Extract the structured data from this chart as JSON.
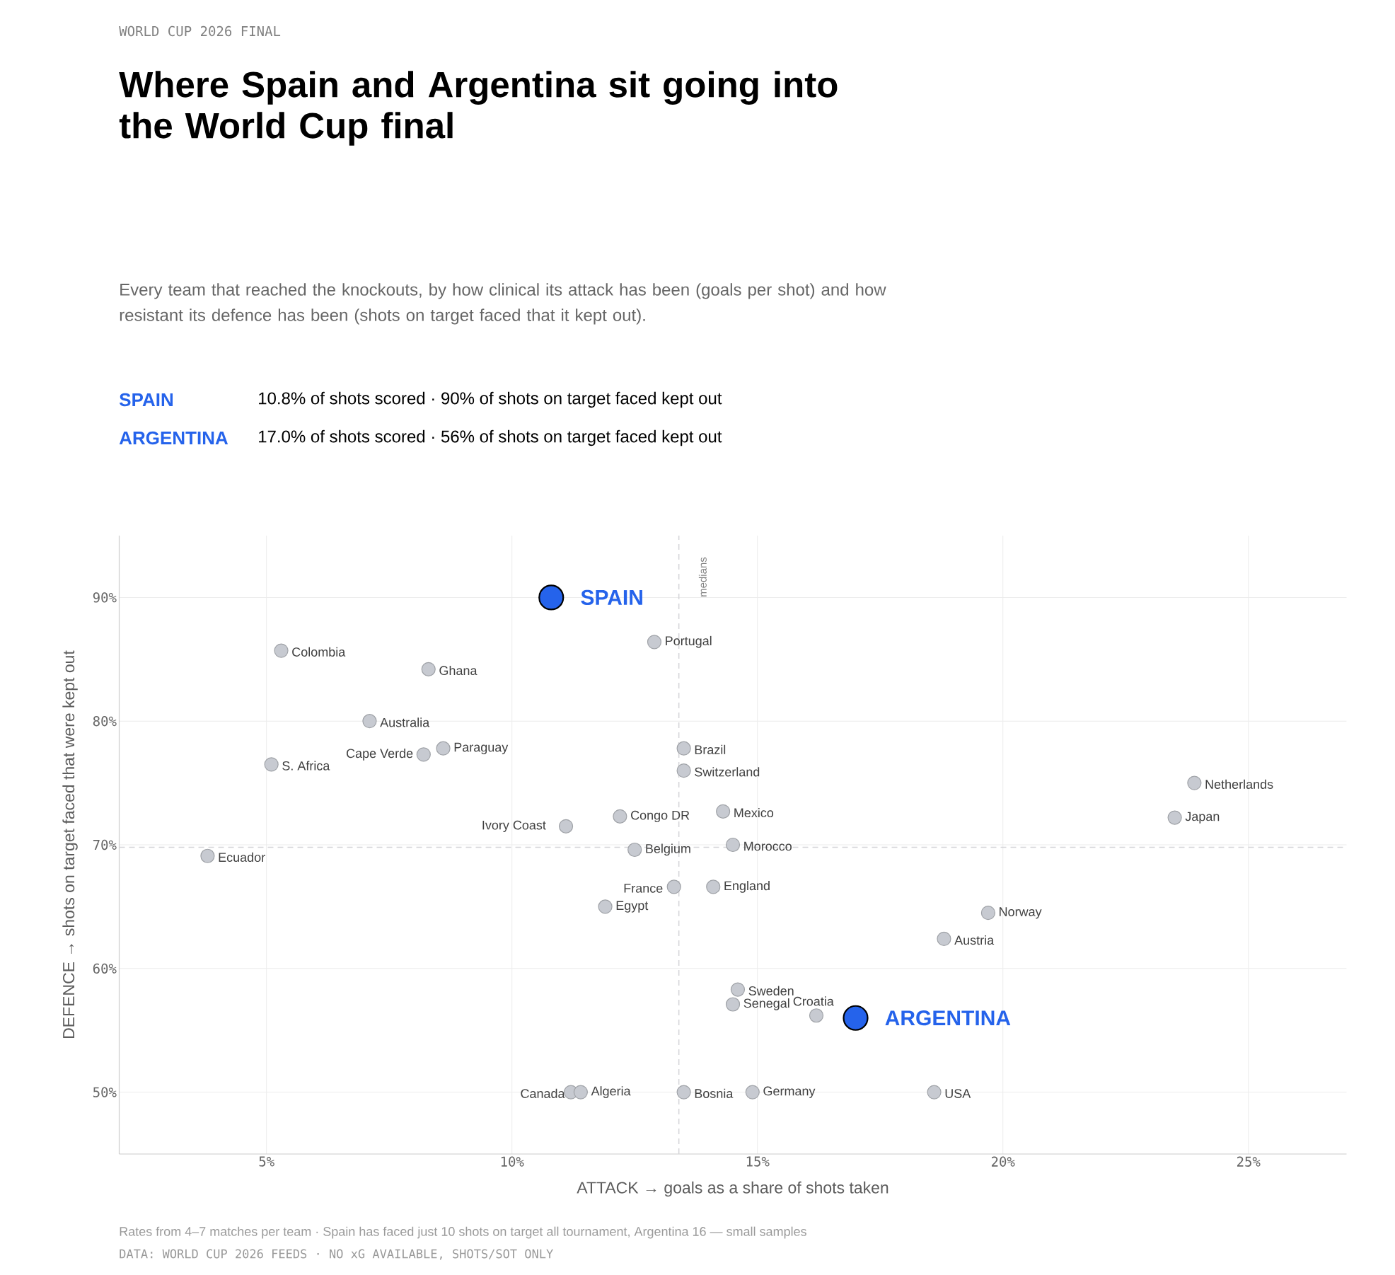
{
  "chart_data": {
    "type": "scatter",
    "title": "Where Spain and Argentina sit going into the World Cup final",
    "subtitle": "Every team that reached the knockouts, by how clinical its attack has been (goals per shot) and how resistant its defence has been (shots on target faced that it kept out).",
    "xlabel": "ATTACK → goals as a share of shots taken",
    "ylabel": "DEFENCE → shots on target faced that were kept out",
    "xlim": [
      2,
      27
    ],
    "ylim": [
      45,
      95
    ],
    "xticks": [
      {
        "value": 5,
        "label": "5%"
      },
      {
        "value": 10,
        "label": "10%"
      },
      {
        "value": 15,
        "label": "15%"
      },
      {
        "value": 20,
        "label": "20%"
      },
      {
        "value": 25,
        "label": "25%"
      }
    ],
    "yticks": [
      {
        "value": 50,
        "label": "50%"
      },
      {
        "value": 60,
        "label": "60%"
      },
      {
        "value": 70,
        "label": "70%"
      },
      {
        "value": 80,
        "label": "80%"
      },
      {
        "value": 90,
        "label": "90%"
      }
    ],
    "grid": true,
    "marker": "circle",
    "ref_lines": [
      {
        "axis": "x",
        "value": 13.4,
        "label": "medians",
        "color": "#d4d4d8",
        "line_style": "dashed"
      },
      {
        "axis": "y",
        "value": 69.8,
        "label": null,
        "color": "#d4d4d8",
        "line_style": "dashed"
      }
    ],
    "series": [
      {
        "color": "#c7cad1",
        "x": [
          5.3,
          8.3,
          7.1,
          8.6,
          8.2,
          5.1,
          3.8,
          12.9,
          13.5,
          13.5,
          12.2,
          11.1,
          14.3,
          12.5,
          14.5,
          13.3,
          14.1,
          11.9,
          19.7,
          18.8,
          23.9,
          23.5,
          14.6,
          14.5,
          16.2,
          11.2,
          11.4,
          13.5,
          14.9,
          18.6
        ],
        "values": [
          85.7,
          84.2,
          80,
          77.8,
          77.3,
          76.5,
          69.1,
          86.4,
          77.8,
          76.0,
          72.3,
          71.5,
          72.7,
          69.6,
          70,
          66.6,
          66.6,
          65.0,
          64.5,
          62.4,
          75.0,
          72.2,
          58.3,
          57.1,
          56.2,
          50,
          50,
          50,
          50,
          50
        ]
      },
      {
        "color": "#2563eb",
        "x": [
          10.8
        ],
        "values": [
          90
        ]
      },
      {
        "color": "#2563eb",
        "x": [
          17.0
        ],
        "values": [
          56
        ]
      }
    ],
    "annotations": [
      "WORLD CUP 2026 FINAL",
      "SPAIN",
      "10.8% of shots scored  ·  90% of shots on target faced kept out",
      "ARGENTINA",
      "17.0% of shots scored  ·  56% of shots on target faced kept out",
      "Rates from 4–7 matches per team · Spain has faced just 10 shots on target all tournament, Argentina 16 — small samples",
      "DATA: WORLD CUP 2026 FEEDS · NO xG AVAILABLE, SHOTS/SOT ONLY",
      {
        "text": "SPAIN",
        "x": 10.8,
        "y": 90
      },
      {
        "text": "ARGENTINA",
        "x": 17.0,
        "y": 56
      },
      {
        "text": "Colombia",
        "x": 5.3,
        "y": 85.7
      },
      {
        "text": "Ghana",
        "x": 8.3,
        "y": 84.2
      },
      {
        "text": "Australia",
        "x": 7.1,
        "y": 80
      },
      {
        "text": "Paraguay",
        "x": 8.6,
        "y": 77.8
      },
      {
        "text": "Cape Verde",
        "x": 8.2,
        "y": 77.3
      },
      {
        "text": "S. Africa",
        "x": 5.1,
        "y": 76.5
      },
      {
        "text": "Ecuador",
        "x": 3.8,
        "y": 69.1
      },
      {
        "text": "Portugal",
        "x": 12.9,
        "y": 86.4
      },
      {
        "text": "Brazil",
        "x": 13.5,
        "y": 77.8
      },
      {
        "text": "Switzerland",
        "x": 13.5,
        "y": 76.0
      },
      {
        "text": "Congo DR",
        "x": 12.2,
        "y": 72.3
      },
      {
        "text": "Ivory Coast",
        "x": 11.1,
        "y": 71.5
      },
      {
        "text": "Mexico",
        "x": 14.3,
        "y": 72.7
      },
      {
        "text": "Belgium",
        "x": 12.5,
        "y": 69.6
      },
      {
        "text": "Morocco",
        "x": 14.5,
        "y": 70
      },
      {
        "text": "France",
        "x": 13.3,
        "y": 66.6
      },
      {
        "text": "England",
        "x": 14.1,
        "y": 66.6
      },
      {
        "text": "Egypt",
        "x": 11.9,
        "y": 65.0
      },
      {
        "text": "Norway",
        "x": 19.7,
        "y": 64.5
      },
      {
        "text": "Austria",
        "x": 18.8,
        "y": 62.4
      },
      {
        "text": "Netherlands",
        "x": 23.9,
        "y": 75.0
      },
      {
        "text": "Japan",
        "x": 23.5,
        "y": 72.2
      },
      {
        "text": "Sweden",
        "x": 14.6,
        "y": 58.3
      },
      {
        "text": "Senegal",
        "x": 14.5,
        "y": 57.1
      },
      {
        "text": "Croatia",
        "x": 16.2,
        "y": 56.2
      },
      {
        "text": "Canada",
        "x": 11.2,
        "y": 50
      },
      {
        "text": "Algeria",
        "x": 11.4,
        "y": 50
      },
      {
        "text": "Bosnia",
        "x": 13.5,
        "y": 50
      },
      {
        "text": "Germany",
        "x": 14.9,
        "y": 50
      },
      {
        "text": "USA",
        "x": 18.6,
        "y": 50
      }
    ]
  }
}
